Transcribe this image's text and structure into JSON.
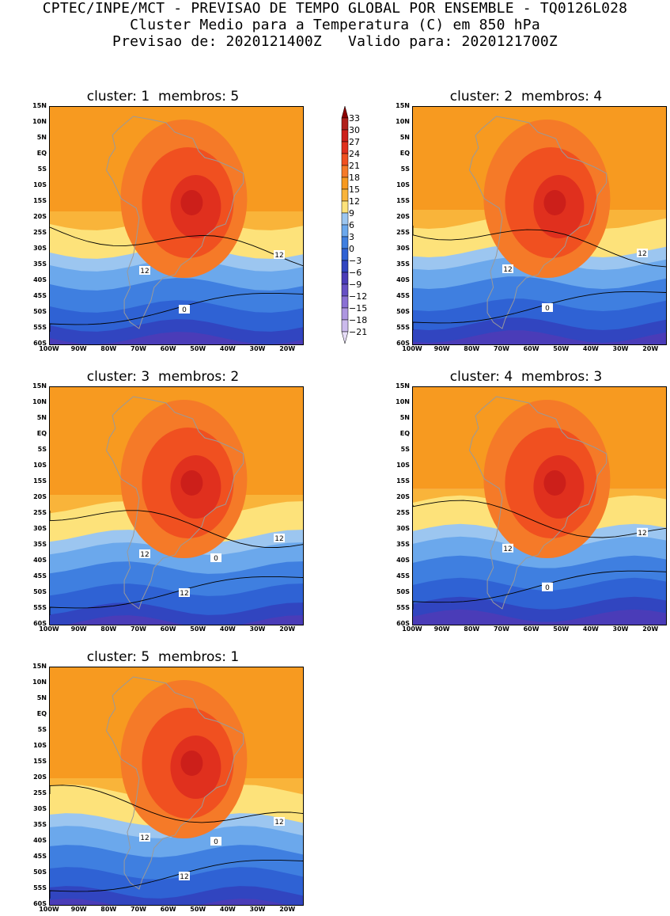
{
  "header": {
    "line1": "CPTEC/INPE/MCT - PREVISAO DE TEMPO GLOBAL POR ENSEMBLE - TQ0126L028",
    "line2": "Cluster Medio para a Temperatura (C) em 850 hPa",
    "line3": "Previsao de: 2020121400Z   Valido para: 2020121700Z"
  },
  "panels": [
    {
      "cluster": "1",
      "membros": "5",
      "title": "cluster: 1  membros: 5",
      "contour_labels": [
        "12",
        "12",
        "0"
      ]
    },
    {
      "cluster": "2",
      "membros": "4",
      "title": "cluster: 2  membros: 4",
      "contour_labels": [
        "12",
        "12",
        "0"
      ]
    },
    {
      "cluster": "3",
      "membros": "2",
      "title": "cluster: 3  membros: 2",
      "contour_labels": [
        "12",
        "12",
        "12",
        "0"
      ]
    },
    {
      "cluster": "4",
      "membros": "3",
      "title": "cluster: 4  membros: 3",
      "contour_labels": [
        "12",
        "12",
        "0"
      ]
    },
    {
      "cluster": "5",
      "membros": "1",
      "title": "cluster: 5  membros: 1",
      "contour_labels": [
        "12",
        "12",
        "12",
        "0"
      ]
    }
  ],
  "axes": {
    "lat_labels": [
      "15N",
      "10N",
      "5N",
      "EQ",
      "5S",
      "10S",
      "15S",
      "20S",
      "25S",
      "30S",
      "35S",
      "40S",
      "45S",
      "50S",
      "55S",
      "60S"
    ],
    "lon_labels": [
      "100W",
      "90W",
      "80W",
      "70W",
      "60W",
      "50W",
      "40W",
      "30W",
      "20W"
    ]
  },
  "colorbar": {
    "labels": [
      "33",
      "30",
      "27",
      "24",
      "21",
      "18",
      "15",
      "12",
      "9",
      "6",
      "3",
      "0",
      "-3",
      "-6",
      "-9",
      "-12",
      "-15",
      "-18",
      "-21"
    ],
    "colors": [
      "#8b0000",
      "#b0201a",
      "#cc1f1a",
      "#e0301e",
      "#f05020",
      "#f57a28",
      "#f79a20",
      "#f9b43a",
      "#fde27a",
      "#9cc6f0",
      "#6ba8ec",
      "#3f7fe0",
      "#2f62d4",
      "#3145c0",
      "#4a3cb8",
      "#6650c4",
      "#8a70d4",
      "#ad96e0",
      "#cbbaec",
      "#e6dcf6"
    ]
  }
}
